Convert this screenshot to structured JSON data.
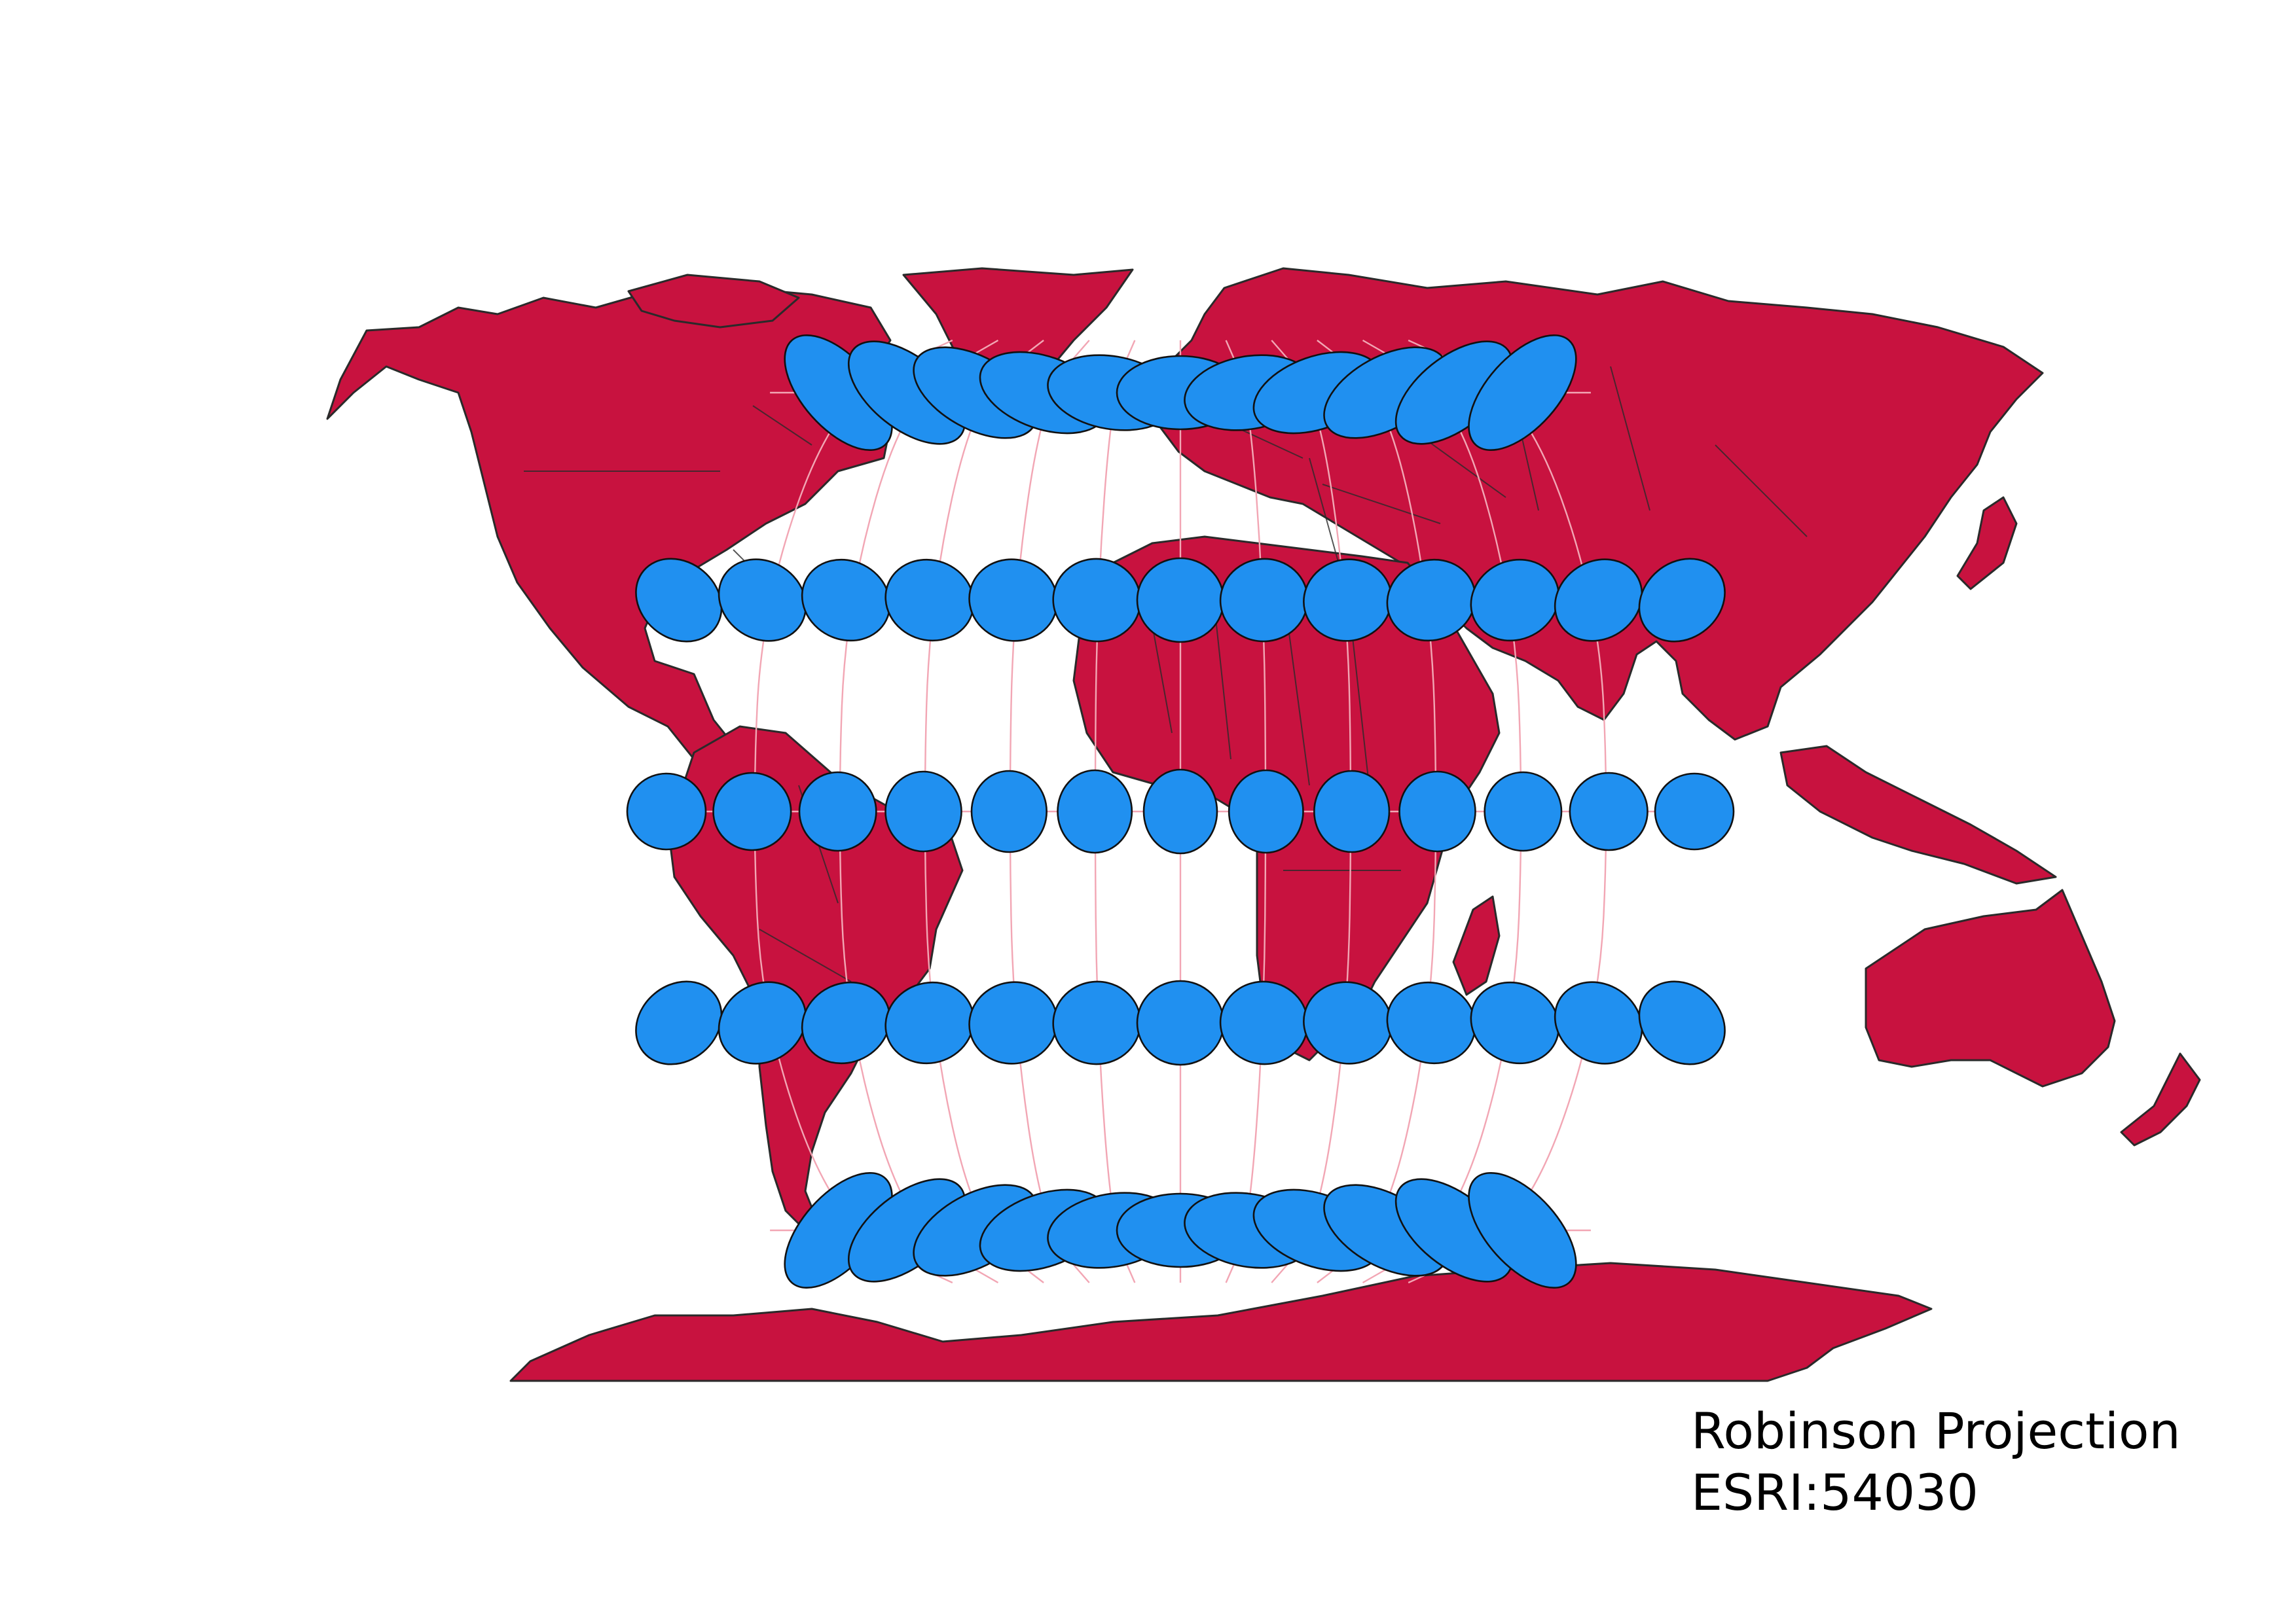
{
  "map": {
    "projection": "Robinson",
    "land_color": "#c8123f",
    "indicatrix_color": "#2090f0",
    "graticule_color": "#f2a6b4",
    "graticule_parallels_deg": [
      60,
      30,
      0,
      -30,
      -60
    ],
    "graticule_meridians_deg": [
      -150,
      -120,
      -90,
      -60,
      -30,
      0,
      30,
      60,
      90,
      120,
      150
    ],
    "tissot_latitudes_deg": [
      60,
      30,
      0,
      -30,
      -60
    ],
    "tissot_longitudes_deg": [
      -180,
      -150,
      -120,
      -90,
      -60,
      -30,
      0,
      30,
      60,
      90,
      120,
      150,
      180
    ]
  },
  "caption": {
    "title": "Robinson Projection",
    "code": "ESRI:54030"
  }
}
